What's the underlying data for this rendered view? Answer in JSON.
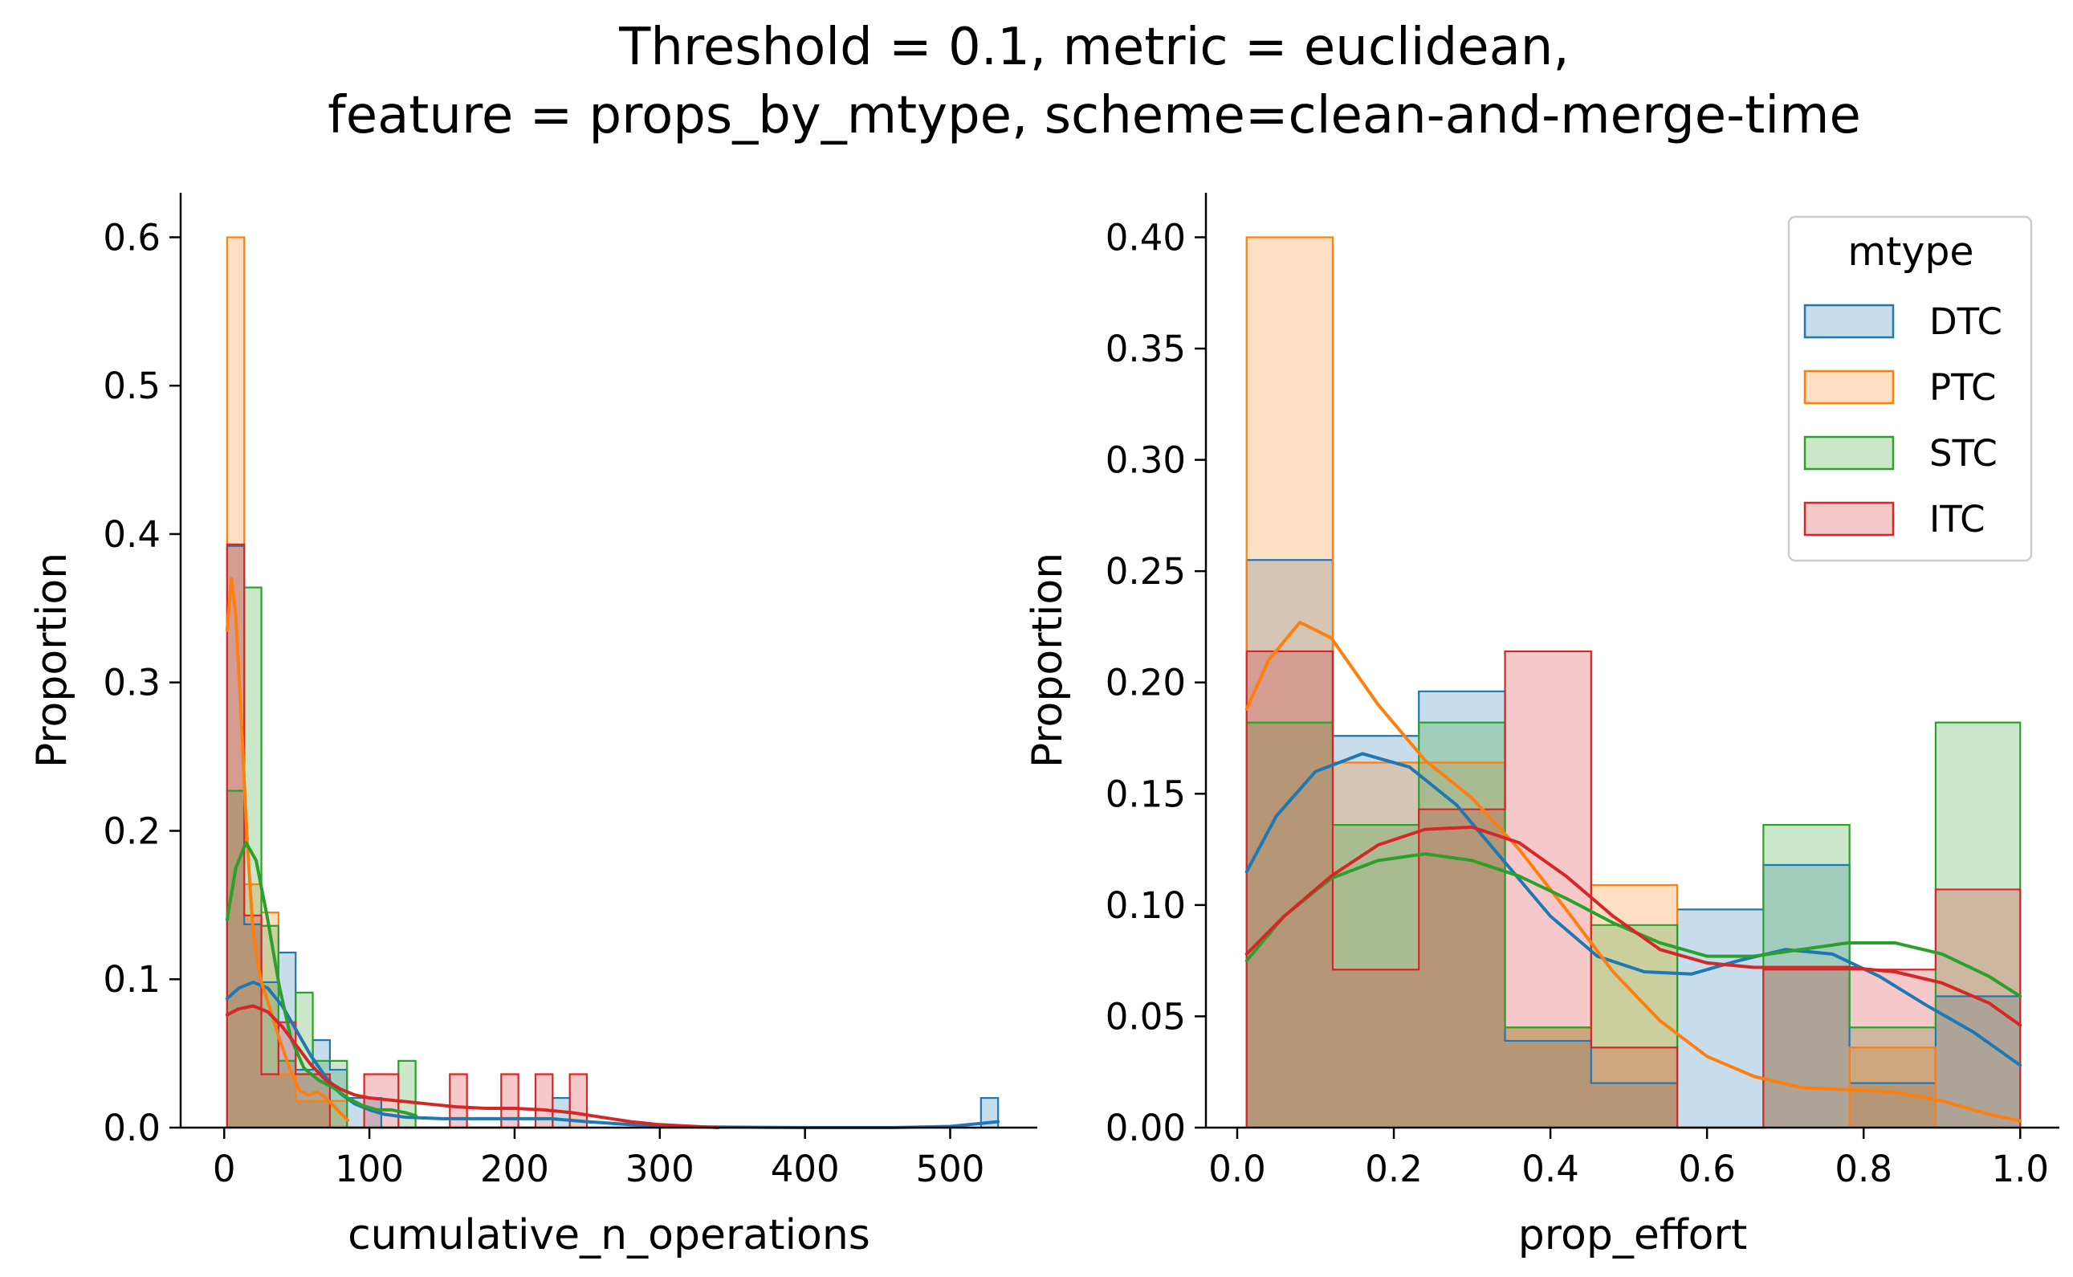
{
  "figure": {
    "title_line1": "Threshold = 0.1, metric = euclidean,",
    "title_line2": "feature = props_by_mtype, scheme=clean-and-merge-time"
  },
  "colors": {
    "DTC": "#1f77b4",
    "PTC": "#ff7f0e",
    "STC": "#2ca02c",
    "ITC": "#d62728"
  },
  "chart_data": [
    {
      "type": "histogram",
      "xlabel": "cumulative_n_operations",
      "ylabel": "Proportion",
      "xlim": [
        -30,
        560
      ],
      "ylim": [
        0,
        0.63
      ],
      "xticks": [
        0,
        100,
        200,
        300,
        400,
        500
      ],
      "xtick_labels": [
        "0",
        "100",
        "200",
        "300",
        "400",
        "500"
      ],
      "yticks": [
        0.0,
        0.1,
        0.2,
        0.3,
        0.4,
        0.5,
        0.6
      ],
      "ytick_labels": [
        "0.0",
        "0.1",
        "0.2",
        "0.3",
        "0.4",
        "0.5",
        "0.6"
      ],
      "grid": false,
      "series": [
        {
          "name": "DTC",
          "bin_edges": [
            2,
            13.8,
            25.6,
            37.4,
            49.2,
            61,
            72.8,
            84.6,
            96.4,
            108.2,
            120,
            131.8,
            143.6,
            155.4,
            167.2,
            179,
            190.8,
            202.6,
            214.4,
            226.2,
            238,
            249.8,
            261.6,
            273.4,
            285.2,
            297,
            308.8,
            320.6,
            332.4,
            344.2,
            356,
            367.8,
            379.6,
            391.4,
            403.2,
            415,
            426.8,
            438.6,
            450.4,
            462.2,
            474,
            485.8,
            497.6,
            509.4,
            521.2,
            533
          ],
          "values": [
            0.392,
            0.137,
            0.098,
            0.118,
            0.039,
            0.059,
            0.039,
            0.02,
            0.02,
            0,
            0,
            0,
            0,
            0,
            0,
            0,
            0,
            0,
            0,
            0.02,
            0,
            0,
            0,
            0,
            0,
            0,
            0,
            0,
            0,
            0,
            0,
            0,
            0,
            0,
            0,
            0,
            0,
            0,
            0,
            0,
            0,
            0,
            0,
            0,
            0.02
          ],
          "kde": [
            [
              2,
              0.087
            ],
            [
              10,
              0.094
            ],
            [
              20,
              0.098
            ],
            [
              30,
              0.094
            ],
            [
              40,
              0.082
            ],
            [
              50,
              0.065
            ],
            [
              60,
              0.048
            ],
            [
              70,
              0.034
            ],
            [
              80,
              0.023
            ],
            [
              90,
              0.016
            ],
            [
              100,
              0.012
            ],
            [
              110,
              0.009
            ],
            [
              125,
              0.007
            ],
            [
              150,
              0.006
            ],
            [
              175,
              0.006
            ],
            [
              200,
              0.006
            ],
            [
              225,
              0.006
            ],
            [
              250,
              0.004
            ],
            [
              280,
              0.002
            ],
            [
              320,
              0.0005
            ],
            [
              400,
              0
            ],
            [
              460,
              0
            ],
            [
              500,
              0.0008
            ],
            [
              533,
              0.004
            ]
          ]
        },
        {
          "name": "PTC",
          "bin_edges": [
            2,
            13.8,
            25.6,
            37.4,
            49.2,
            61,
            72.8,
            84.6
          ],
          "values": [
            0.6,
            0.164,
            0.145,
            0.036,
            0.018,
            0.018,
            0.018
          ],
          "kde": [
            [
              2,
              0.335
            ],
            [
              5,
              0.37
            ],
            [
              8,
              0.345
            ],
            [
              12,
              0.27
            ],
            [
              16,
              0.19
            ],
            [
              20,
              0.13
            ],
            [
              25,
              0.1
            ],
            [
              30,
              0.085
            ],
            [
              38,
              0.06
            ],
            [
              45,
              0.04
            ],
            [
              52,
              0.025
            ],
            [
              58,
              0.022
            ],
            [
              64,
              0.024
            ],
            [
              70,
              0.02
            ],
            [
              78,
              0.012
            ],
            [
              85,
              0.005
            ]
          ]
        },
        {
          "name": "STC",
          "bin_edges": [
            2,
            13.8,
            25.6,
            37.4,
            49.2,
            61,
            72.8,
            84.6,
            96.4,
            108.2,
            120,
            131.8
          ],
          "values": [
            0.227,
            0.364,
            0.136,
            0.045,
            0.091,
            0.045,
            0.045,
            0.0,
            0.0,
            0.0,
            0.045
          ],
          "kde": [
            [
              2,
              0.14
            ],
            [
              8,
              0.175
            ],
            [
              15,
              0.192
            ],
            [
              22,
              0.18
            ],
            [
              30,
              0.14
            ],
            [
              38,
              0.095
            ],
            [
              46,
              0.06
            ],
            [
              55,
              0.04
            ],
            [
              65,
              0.032
            ],
            [
              75,
              0.027
            ],
            [
              85,
              0.02
            ],
            [
              95,
              0.015
            ],
            [
              105,
              0.012
            ],
            [
              115,
              0.012
            ],
            [
              125,
              0.01
            ],
            [
              132,
              0.008
            ]
          ]
        },
        {
          "name": "ITC",
          "bin_edges": [
            2,
            13.8,
            25.6,
            37.4,
            49.2,
            61,
            72.8,
            84.6,
            96.4,
            108.2,
            120,
            131.8,
            143.6,
            155.4,
            167.2,
            179,
            190.8,
            202.6,
            214.4,
            226.2,
            238,
            249.8
          ],
          "values": [
            0.393,
            0.143,
            0.036,
            0.071,
            0.036,
            0.036,
            0.0,
            0.0,
            0.036,
            0.036,
            0.0,
            0.0,
            0.0,
            0.036,
            0.0,
            0.0,
            0.036,
            0.0,
            0.036,
            0.0,
            0.036
          ],
          "kde": [
            [
              2,
              0.076
            ],
            [
              10,
              0.08
            ],
            [
              20,
              0.082
            ],
            [
              30,
              0.078
            ],
            [
              40,
              0.068
            ],
            [
              50,
              0.055
            ],
            [
              60,
              0.042
            ],
            [
              70,
              0.032
            ],
            [
              80,
              0.026
            ],
            [
              90,
              0.022
            ],
            [
              100,
              0.02
            ],
            [
              120,
              0.018
            ],
            [
              140,
              0.016
            ],
            [
              160,
              0.014
            ],
            [
              180,
              0.013
            ],
            [
              200,
              0.013
            ],
            [
              220,
              0.012
            ],
            [
              240,
              0.01
            ],
            [
              260,
              0.007
            ],
            [
              280,
              0.004
            ],
            [
              300,
              0.002
            ],
            [
              320,
              0.001
            ],
            [
              340,
              0
            ]
          ]
        }
      ]
    },
    {
      "type": "histogram",
      "xlabel": "prop_effort",
      "ylabel": "Proportion",
      "xlim": [
        -0.04,
        1.05
      ],
      "ylim": [
        0,
        0.42
      ],
      "xticks": [
        0.0,
        0.2,
        0.4,
        0.6,
        0.8,
        1.0
      ],
      "xtick_labels": [
        "0.0",
        "0.2",
        "0.4",
        "0.6",
        "0.8",
        "1.0"
      ],
      "yticks": [
        0.0,
        0.05,
        0.1,
        0.15,
        0.2,
        0.25,
        0.3,
        0.35,
        0.4
      ],
      "ytick_labels": [
        "0.00",
        "0.05",
        "0.10",
        "0.15",
        "0.20",
        "0.25",
        "0.30",
        "0.35",
        "0.40"
      ],
      "grid": false,
      "legend": {
        "title": "mtype",
        "position": "upper right"
      },
      "series": [
        {
          "name": "DTC",
          "bin_edges": [
            0.012,
            0.122,
            0.232,
            0.342,
            0.452,
            0.562,
            0.672,
            0.782,
            0.892,
            1.0
          ],
          "values": [
            0.255,
            0.176,
            0.196,
            0.039,
            0.02,
            0.098,
            0.118,
            0.02,
            0.059
          ],
          "kde": [
            [
              0.012,
              0.115
            ],
            [
              0.05,
              0.14
            ],
            [
              0.1,
              0.16
            ],
            [
              0.16,
              0.168
            ],
            [
              0.22,
              0.162
            ],
            [
              0.28,
              0.145
            ],
            [
              0.34,
              0.12
            ],
            [
              0.4,
              0.095
            ],
            [
              0.46,
              0.077
            ],
            [
              0.52,
              0.07
            ],
            [
              0.58,
              0.069
            ],
            [
              0.64,
              0.075
            ],
            [
              0.7,
              0.08
            ],
            [
              0.76,
              0.078
            ],
            [
              0.82,
              0.068
            ],
            [
              0.88,
              0.055
            ],
            [
              0.94,
              0.043
            ],
            [
              1.0,
              0.028
            ]
          ]
        },
        {
          "name": "PTC",
          "bin_edges": [
            0.012,
            0.122,
            0.232,
            0.342,
            0.452,
            0.562,
            0.672,
            0.782,
            0.892,
            1.0
          ],
          "values": [
            0.4,
            0.164,
            0.164,
            0.045,
            0.109,
            0.0,
            0.0,
            0.036,
            0.0
          ],
          "kde": [
            [
              0.012,
              0.188
            ],
            [
              0.04,
              0.21
            ],
            [
              0.08,
              0.227
            ],
            [
              0.12,
              0.22
            ],
            [
              0.18,
              0.19
            ],
            [
              0.24,
              0.165
            ],
            [
              0.3,
              0.148
            ],
            [
              0.36,
              0.125
            ],
            [
              0.42,
              0.098
            ],
            [
              0.48,
              0.07
            ],
            [
              0.54,
              0.048
            ],
            [
              0.6,
              0.032
            ],
            [
              0.66,
              0.023
            ],
            [
              0.72,
              0.018
            ],
            [
              0.78,
              0.017
            ],
            [
              0.84,
              0.016
            ],
            [
              0.9,
              0.012
            ],
            [
              0.96,
              0.006
            ],
            [
              1.0,
              0.003
            ]
          ]
        },
        {
          "name": "STC",
          "bin_edges": [
            0.012,
            0.122,
            0.232,
            0.342,
            0.452,
            0.562,
            0.672,
            0.782,
            0.892,
            1.0
          ],
          "values": [
            0.182,
            0.136,
            0.182,
            0.045,
            0.091,
            0.0,
            0.136,
            0.045,
            0.182
          ],
          "kde": [
            [
              0.012,
              0.075
            ],
            [
              0.06,
              0.095
            ],
            [
              0.12,
              0.112
            ],
            [
              0.18,
              0.12
            ],
            [
              0.24,
              0.123
            ],
            [
              0.3,
              0.12
            ],
            [
              0.36,
              0.113
            ],
            [
              0.42,
              0.103
            ],
            [
              0.48,
              0.092
            ],
            [
              0.54,
              0.083
            ],
            [
              0.6,
              0.077
            ],
            [
              0.66,
              0.077
            ],
            [
              0.72,
              0.08
            ],
            [
              0.78,
              0.083
            ],
            [
              0.84,
              0.083
            ],
            [
              0.9,
              0.078
            ],
            [
              0.96,
              0.068
            ],
            [
              1.0,
              0.059
            ]
          ]
        },
        {
          "name": "ITC",
          "bin_edges": [
            0.012,
            0.122,
            0.232,
            0.342,
            0.452,
            0.562,
            0.672,
            0.782,
            0.892,
            1.0
          ],
          "values": [
            0.214,
            0.071,
            0.143,
            0.214,
            0.036,
            0.0,
            0.071,
            0.071,
            0.107
          ],
          "kde": [
            [
              0.012,
              0.078
            ],
            [
              0.06,
              0.095
            ],
            [
              0.12,
              0.113
            ],
            [
              0.18,
              0.127
            ],
            [
              0.24,
              0.134
            ],
            [
              0.3,
              0.135
            ],
            [
              0.36,
              0.128
            ],
            [
              0.42,
              0.113
            ],
            [
              0.48,
              0.095
            ],
            [
              0.54,
              0.08
            ],
            [
              0.6,
              0.074
            ],
            [
              0.66,
              0.072
            ],
            [
              0.72,
              0.072
            ],
            [
              0.78,
              0.072
            ],
            [
              0.84,
              0.07
            ],
            [
              0.9,
              0.065
            ],
            [
              0.96,
              0.056
            ],
            [
              1.0,
              0.046
            ]
          ]
        }
      ]
    }
  ]
}
